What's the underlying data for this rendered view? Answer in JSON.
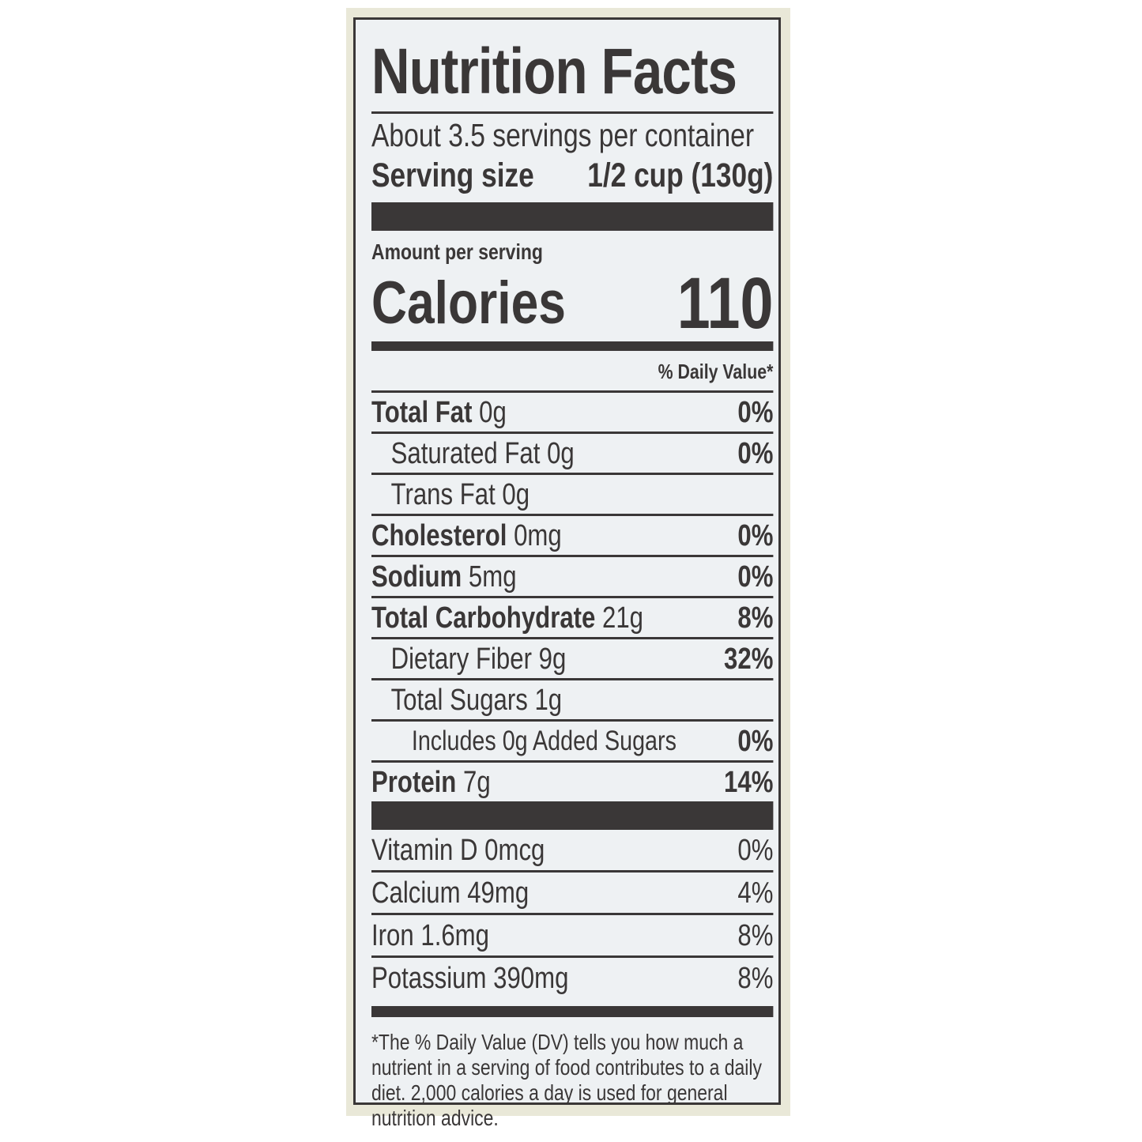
{
  "title": "Nutrition Facts",
  "servings_per_container": "About 3.5 servings per container",
  "serving_size": {
    "label": "Serving size",
    "value": "1/2 cup (130g)"
  },
  "amount_per_serving": "Amount per serving",
  "calories": {
    "label": "Calories",
    "value": "110"
  },
  "daily_value_header": "% Daily Value*",
  "nutrients": [
    {
      "name": "Total Fat",
      "amount": "0g",
      "dv": "0%"
    },
    {
      "name": "Saturated Fat",
      "amount": "0g",
      "dv": "0%"
    },
    {
      "name": "Trans Fat",
      "amount": "0g",
      "dv": ""
    },
    {
      "name": "Cholesterol",
      "amount": "0mg",
      "dv": "0%"
    },
    {
      "name": "Sodium",
      "amount": "5mg",
      "dv": "0%"
    },
    {
      "name": "Total Carbohydrate",
      "amount": "21g",
      "dv": "8%"
    },
    {
      "name": "Dietary Fiber",
      "amount": "9g",
      "dv": "32%"
    },
    {
      "name": "Total Sugars",
      "amount": "1g",
      "dv": ""
    },
    {
      "name": "Includes 0g Added Sugars",
      "amount": "",
      "dv": "0%"
    },
    {
      "name": "Protein",
      "amount": "7g",
      "dv": "14%"
    }
  ],
  "vitamins": [
    {
      "name": "Vitamin D",
      "amount": "0mcg",
      "dv": "0%"
    },
    {
      "name": "Calcium",
      "amount": "49mg",
      "dv": "4%"
    },
    {
      "name": "Iron",
      "amount": "1.6mg",
      "dv": "8%"
    },
    {
      "name": "Potassium",
      "amount": "390mg",
      "dv": "8%"
    }
  ],
  "footnote": "*The % Daily Value (DV) tells you how much a nutrient in a serving of food contributes to a daily diet. 2,000 calories a day is used for general nutrition advice.",
  "colors": {
    "ink": "#3a3737",
    "label_bg": "#eef1f3"
  }
}
